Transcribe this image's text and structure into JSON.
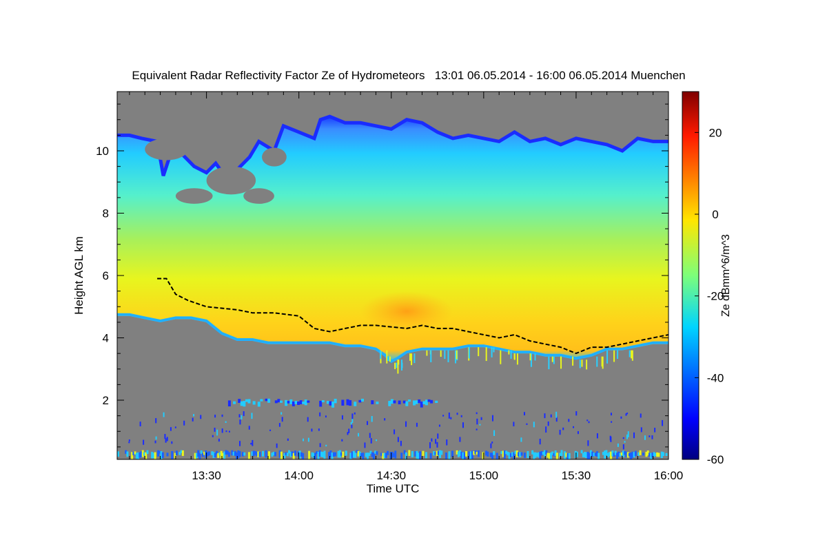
{
  "chart_data": {
    "type": "heatmap",
    "title": "Equivalent Radar Reflectivity Factor Ze of Hydrometeors   13:01 06.05.2014 - 16:00 06.05.2014 Muenchen",
    "xlabel": "Time UTC",
    "ylabel": "Height AGL km",
    "x_unit": "minutes since 13:00 UTC",
    "xlim": [
      1,
      180
    ],
    "ylim": [
      0.1,
      11.9
    ],
    "x_ticks": [
      {
        "value": 30,
        "label": "13:30"
      },
      {
        "value": 60,
        "label": "14:00"
      },
      {
        "value": 90,
        "label": "14:30"
      },
      {
        "value": 120,
        "label": "15:00"
      },
      {
        "value": 150,
        "label": "15:30"
      },
      {
        "value": 180,
        "label": "16:00"
      }
    ],
    "y_ticks": [
      {
        "value": 2,
        "label": "2"
      },
      {
        "value": 4,
        "label": "4"
      },
      {
        "value": 6,
        "label": "6"
      },
      {
        "value": 8,
        "label": "8"
      },
      {
        "value": 10,
        "label": "10"
      }
    ],
    "colorbar": {
      "label": "Ze dBmm^6/m^3",
      "range": [
        -60,
        30
      ],
      "ticks": [
        {
          "value": 20,
          "label": "20"
        },
        {
          "value": 0,
          "label": "0"
        },
        {
          "value": -20,
          "label": "-20"
        },
        {
          "value": -40,
          "label": "-40"
        },
        {
          "value": -60,
          "label": "-60"
        }
      ]
    },
    "cloud_top_km": [
      [
        1,
        10.5
      ],
      [
        5,
        10.5
      ],
      [
        9,
        10.4
      ],
      [
        14,
        10.3
      ],
      [
        16,
        9.2
      ],
      [
        18,
        9.8
      ],
      [
        22,
        9.9
      ],
      [
        26,
        9.5
      ],
      [
        30,
        9.3
      ],
      [
        33,
        9.6
      ],
      [
        36,
        9.2
      ],
      [
        40,
        9.4
      ],
      [
        44,
        9.8
      ],
      [
        47,
        10.3
      ],
      [
        52,
        10.0
      ],
      [
        55,
        10.8
      ],
      [
        60,
        10.6
      ],
      [
        65,
        10.4
      ],
      [
        67,
        11.0
      ],
      [
        70,
        11.1
      ],
      [
        75,
        10.9
      ],
      [
        80,
        10.9
      ],
      [
        85,
        10.8
      ],
      [
        90,
        10.7
      ],
      [
        95,
        11.0
      ],
      [
        100,
        10.9
      ],
      [
        105,
        10.6
      ],
      [
        110,
        10.4
      ],
      [
        115,
        10.5
      ],
      [
        120,
        10.4
      ],
      [
        125,
        10.3
      ],
      [
        130,
        10.6
      ],
      [
        135,
        10.3
      ],
      [
        140,
        10.4
      ],
      [
        145,
        10.2
      ],
      [
        150,
        10.4
      ],
      [
        155,
        10.3
      ],
      [
        160,
        10.2
      ],
      [
        165,
        10.0
      ],
      [
        170,
        10.4
      ],
      [
        175,
        10.3
      ],
      [
        180,
        10.3
      ]
    ],
    "cloud_base_km": [
      [
        1,
        4.7
      ],
      [
        5,
        4.7
      ],
      [
        10,
        4.6
      ],
      [
        15,
        4.5
      ],
      [
        20,
        4.6
      ],
      [
        25,
        4.6
      ],
      [
        30,
        4.5
      ],
      [
        35,
        4.1
      ],
      [
        40,
        3.9
      ],
      [
        45,
        3.9
      ],
      [
        50,
        3.8
      ],
      [
        55,
        3.8
      ],
      [
        60,
        3.8
      ],
      [
        65,
        3.8
      ],
      [
        70,
        3.8
      ],
      [
        75,
        3.7
      ],
      [
        80,
        3.7
      ],
      [
        85,
        3.6
      ],
      [
        88,
        3.4
      ],
      [
        90,
        3.2
      ],
      [
        92,
        3.3
      ],
      [
        95,
        3.5
      ],
      [
        100,
        3.6
      ],
      [
        105,
        3.6
      ],
      [
        110,
        3.6
      ],
      [
        115,
        3.7
      ],
      [
        120,
        3.7
      ],
      [
        125,
        3.6
      ],
      [
        130,
        3.5
      ],
      [
        135,
        3.5
      ],
      [
        140,
        3.4
      ],
      [
        145,
        3.4
      ],
      [
        150,
        3.3
      ],
      [
        155,
        3.4
      ],
      [
        160,
        3.6
      ],
      [
        165,
        3.6
      ],
      [
        170,
        3.7
      ],
      [
        175,
        3.8
      ],
      [
        180,
        3.8
      ]
    ],
    "melting_layer_km": [
      [
        14,
        5.9
      ],
      [
        17,
        5.9
      ],
      [
        20,
        5.4
      ],
      [
        24,
        5.2
      ],
      [
        30,
        5.0
      ],
      [
        40,
        4.9
      ],
      [
        45,
        4.8
      ],
      [
        52,
        4.8
      ],
      [
        60,
        4.7
      ],
      [
        65,
        4.3
      ],
      [
        70,
        4.2
      ],
      [
        75,
        4.3
      ],
      [
        80,
        4.4
      ],
      [
        85,
        4.4
      ],
      [
        95,
        4.3
      ],
      [
        100,
        4.4
      ],
      [
        105,
        4.3
      ],
      [
        110,
        4.3
      ],
      [
        115,
        4.2
      ],
      [
        120,
        4.1
      ],
      [
        125,
        4.0
      ],
      [
        130,
        4.1
      ],
      [
        135,
        3.9
      ],
      [
        140,
        3.8
      ],
      [
        145,
        3.7
      ],
      [
        150,
        3.5
      ],
      [
        155,
        3.7
      ],
      [
        160,
        3.7
      ],
      [
        165,
        3.8
      ],
      [
        170,
        3.9
      ],
      [
        175,
        4.0
      ],
      [
        180,
        4.1
      ]
    ],
    "peak_reflectivity_region": {
      "time_range": [
        80,
        110
      ],
      "height_range": [
        4.2,
        5.5
      ],
      "ze_dbz": [
        -5,
        5
      ]
    },
    "low_level_echo_band": {
      "time_range": [
        37,
        105
      ],
      "height_km": 1.85,
      "ze_dbz": [
        -40,
        -30
      ]
    },
    "near_surface_clutter": {
      "time_range": [
        1,
        180
      ],
      "height_range": [
        0.1,
        0.4
      ],
      "ze_dbz": [
        -35,
        -15
      ]
    },
    "no_signal_color": "#808080"
  }
}
